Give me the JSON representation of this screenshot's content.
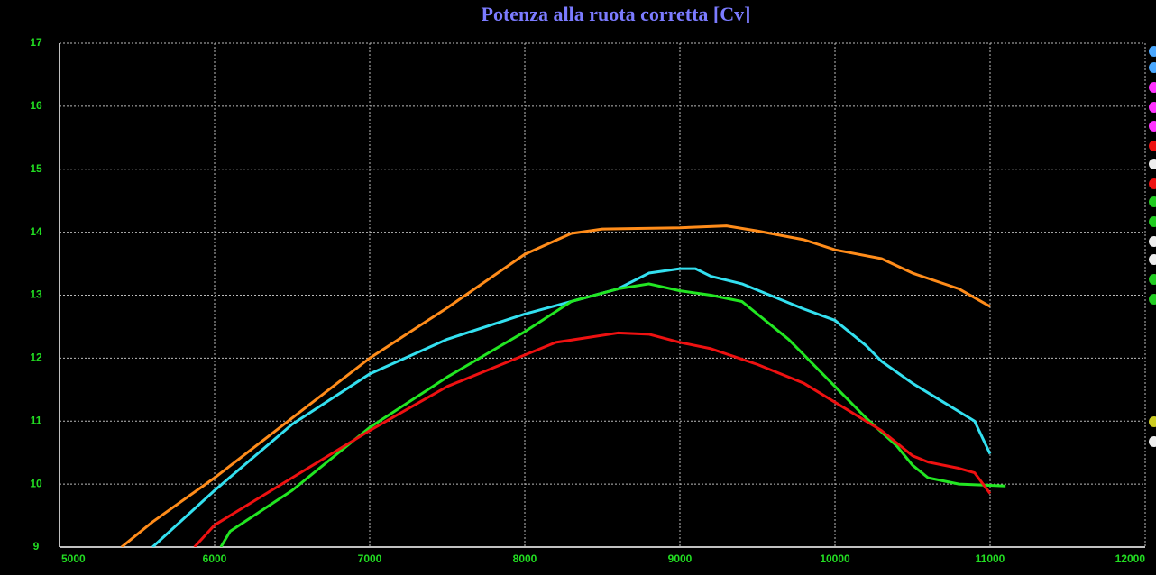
{
  "chart_data": {
    "type": "line",
    "title": "Potenza alla ruota corretta [Cv]",
    "xlim": [
      5000,
      12000
    ],
    "ylim": [
      9,
      17
    ],
    "xticks": [
      5000,
      6000,
      7000,
      8000,
      9000,
      10000,
      11000,
      12000
    ],
    "yticks": [
      9,
      10,
      11,
      12,
      13,
      14,
      15,
      16,
      17
    ],
    "grid": true,
    "series": [
      {
        "color": "#ff8c1a",
        "x": [
          5400,
          5600,
          6000,
          6500,
          7000,
          7500,
          8000,
          8300,
          8500,
          9000,
          9300,
          9500,
          9800,
          10000,
          10300,
          10500,
          10800,
          11000
        ],
        "values": [
          9.0,
          9.4,
          10.1,
          11.05,
          12.0,
          12.8,
          13.65,
          13.98,
          14.05,
          14.07,
          14.1,
          14.02,
          13.88,
          13.72,
          13.58,
          13.35,
          13.1,
          12.82
        ]
      },
      {
        "color": "#33e0f0",
        "x": [
          5600,
          6000,
          6500,
          7000,
          7500,
          8000,
          8300,
          8600,
          8800,
          9000,
          9100,
          9200,
          9400,
          9600,
          9800,
          10000,
          10200,
          10300,
          10500,
          10700,
          10800,
          10900,
          11000
        ],
        "values": [
          9.0,
          9.9,
          10.95,
          11.75,
          12.3,
          12.7,
          12.9,
          13.1,
          13.35,
          13.42,
          13.42,
          13.3,
          13.18,
          12.98,
          12.78,
          12.6,
          12.2,
          11.95,
          11.6,
          11.3,
          11.15,
          11.0,
          10.48
        ]
      },
      {
        "color": "#22e622",
        "x": [
          6040,
          6100,
          6500,
          7000,
          7500,
          8000,
          8300,
          8600,
          8800,
          9000,
          9200,
          9400,
          9700,
          10000,
          10200,
          10400,
          10500,
          10600,
          10800,
          11000,
          11100
        ],
        "values": [
          9.0,
          9.25,
          9.9,
          10.9,
          11.7,
          12.42,
          12.9,
          13.1,
          13.18,
          13.07,
          13.0,
          12.9,
          12.3,
          11.55,
          11.05,
          10.6,
          10.3,
          10.1,
          10.0,
          9.98,
          9.97
        ]
      },
      {
        "color": "#ee1111",
        "x": [
          5870,
          6000,
          6500,
          7000,
          7500,
          8000,
          8200,
          8600,
          8800,
          9000,
          9200,
          9500,
          9800,
          10000,
          10300,
          10500,
          10600,
          10800,
          10900,
          11000
        ],
        "values": [
          9.0,
          9.35,
          10.1,
          10.85,
          11.55,
          12.05,
          12.25,
          12.4,
          12.38,
          12.25,
          12.15,
          11.9,
          11.6,
          11.3,
          10.85,
          10.45,
          10.35,
          10.25,
          10.18,
          9.85
        ]
      }
    ]
  }
}
